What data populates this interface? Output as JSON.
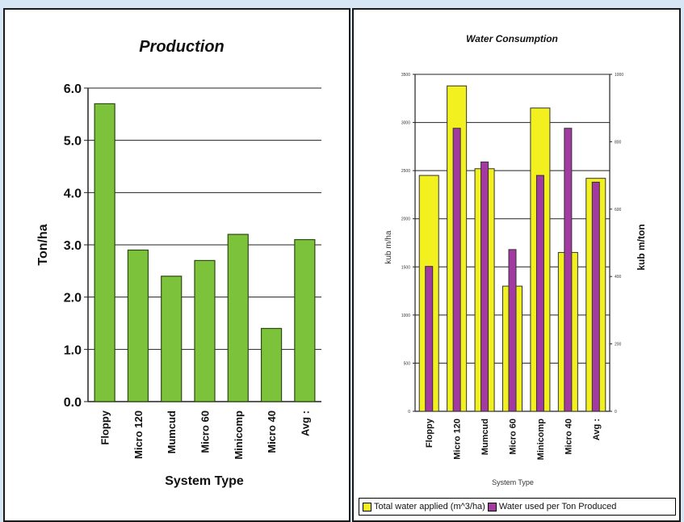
{
  "chart_data": [
    {
      "type": "bar",
      "title": "Production",
      "xlabel": "System Type",
      "ylabel": "Ton/ha",
      "categories": [
        "Floppy",
        "Micro 120",
        "Mumcud",
        "Micro 60",
        "Minicomp",
        "Micro 40",
        "Avg :"
      ],
      "values": [
        5.7,
        2.9,
        2.4,
        2.7,
        3.2,
        1.4,
        3.1
      ],
      "ylim": [
        0,
        6
      ],
      "yticks": [
        "0.0",
        "1.0",
        "2.0",
        "3.0",
        "4.0",
        "5.0",
        "6.0"
      ],
      "grid": true,
      "colors": {
        "bar": "#7cc23a",
        "bar_edge": "#2c4a12"
      }
    },
    {
      "type": "bar",
      "title": "Water Consumption",
      "xlabel": "System Type",
      "ylabel": "kub m/ha",
      "ylabel_right": "kub m/ton",
      "categories": [
        "Floppy",
        "Micro 120",
        "Mumcud",
        "Micro 60",
        "Minicomp",
        "Micro 40",
        "Avg :"
      ],
      "ylim": [
        0,
        3500
      ],
      "ylim_right": [
        0,
        1000
      ],
      "yticks": [
        "0",
        "500",
        "1000",
        "1500",
        "2000",
        "2500",
        "3000",
        "3500"
      ],
      "yticks_right": [
        "0",
        "200",
        "400",
        "600",
        "800",
        "1000"
      ],
      "grid": true,
      "series": [
        {
          "name": "Total water applied (m^3/ha)",
          "axis": "left",
          "values": [
            2450,
            3380,
            2520,
            1300,
            3150,
            1650,
            2420
          ]
        },
        {
          "name": "Water used per Ton Produced",
          "axis": "right",
          "values": [
            430,
            840,
            740,
            480,
            700,
            840,
            680
          ]
        }
      ],
      "legend_position": "bottom",
      "colors": {
        "series1": "#f3f020",
        "series2": "#a33aa1",
        "edge": "#333333"
      }
    }
  ]
}
